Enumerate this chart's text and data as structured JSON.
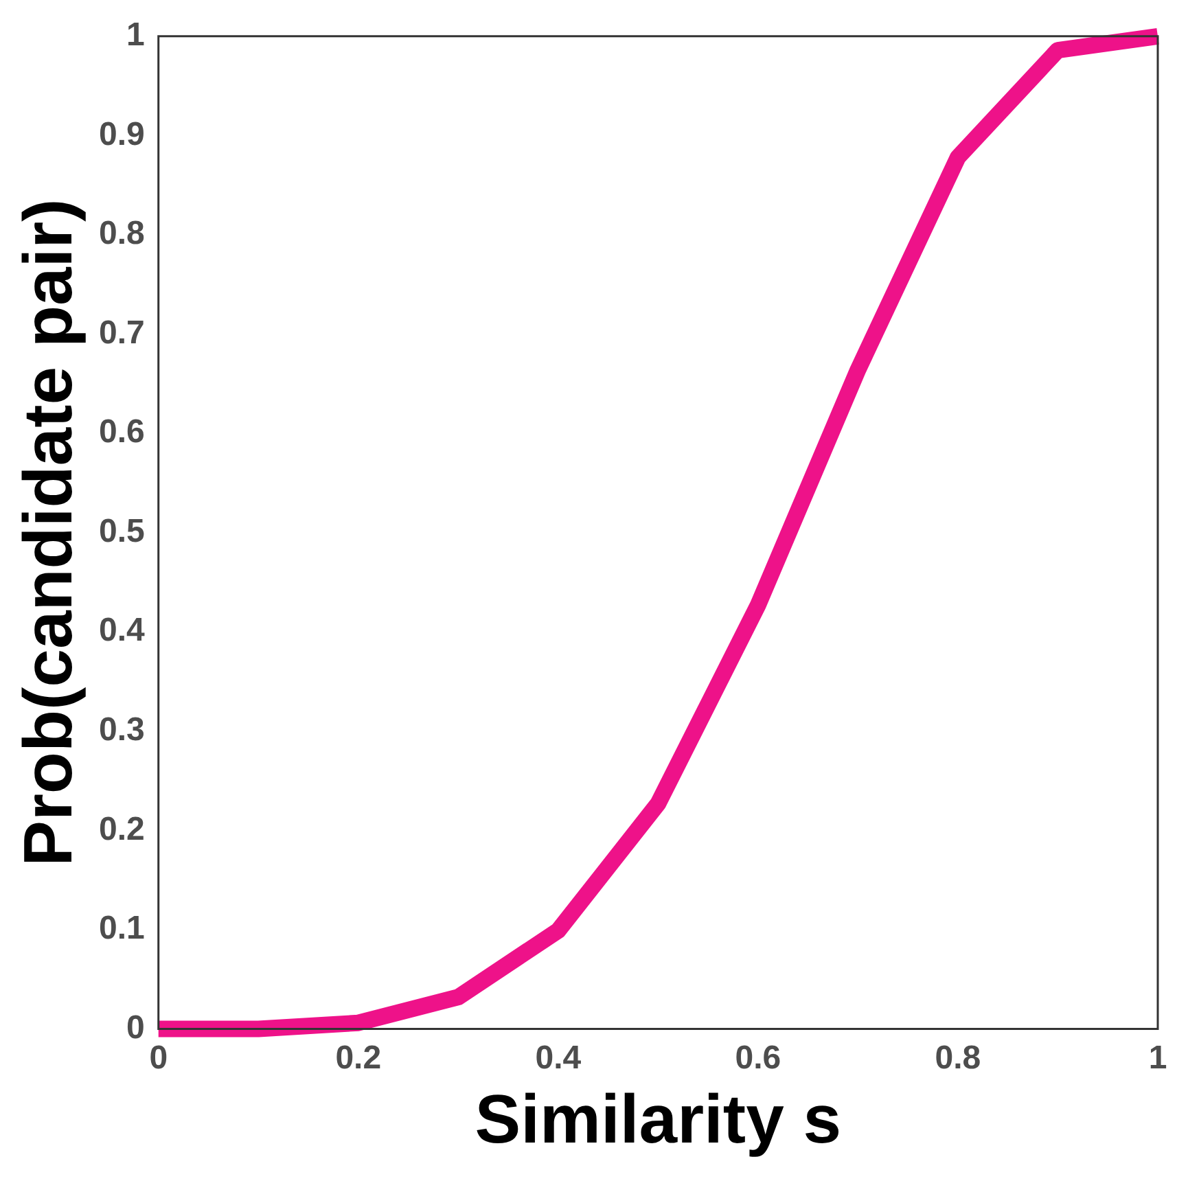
{
  "chart_data": {
    "type": "line",
    "xlabel": "Similarity s",
    "ylabel": "Prob(candidate pair)",
    "x": [
      0,
      0.1,
      0.2,
      0.3,
      0.4,
      0.5,
      0.6,
      0.7,
      0.8,
      0.9,
      1
    ],
    "series": [
      {
        "color": "#ee1289",
        "values": [
          0,
          0,
          0.006,
          0.032,
          0.099,
          0.227,
          0.427,
          0.664,
          0.878,
          0.986,
          1
        ]
      }
    ],
    "xlim": [
      0,
      1
    ],
    "xticks": [
      0,
      0.2,
      0.4,
      0.6,
      0.8,
      1
    ],
    "ylim": [
      0,
      1
    ],
    "yticks": [
      0,
      0.1,
      0.2,
      0.3,
      0.4,
      0.5,
      0.6,
      0.7,
      0.8,
      0.9,
      1
    ],
    "grid": false,
    "legend": false,
    "marker": "none",
    "line_style": "solid"
  }
}
